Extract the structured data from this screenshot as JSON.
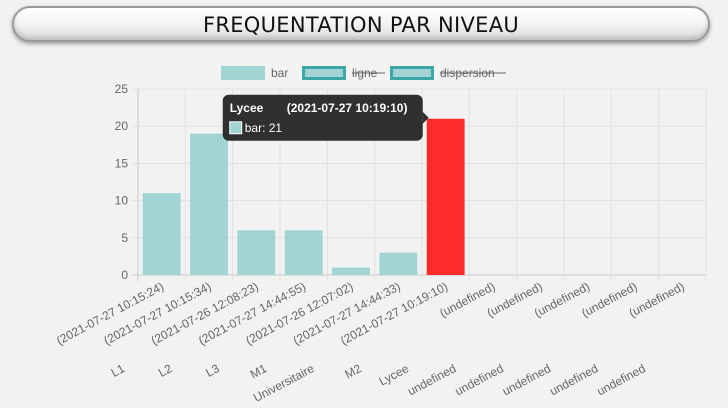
{
  "title": "FREQUENTATION PAR NIVEAU",
  "chart_data": {
    "type": "bar",
    "categories": [
      [
        "L1",
        "(2021-07-27 10:15:24)"
      ],
      [
        "L2",
        "(2021-07-27 10:15:34)"
      ],
      [
        "L3",
        "(2021-07-26 12:08:23)"
      ],
      [
        "M1",
        "(2021-07-27 14:44:55)"
      ],
      [
        "Universitaire",
        "(2021-07-26 12:07:02)"
      ],
      [
        "M2",
        "(2021-07-27 14:44:33)"
      ],
      [
        "Lycee",
        "(2021-07-27 10:19:10)"
      ],
      [
        "undefined",
        "(undefined)"
      ],
      [
        "undefined",
        "(undefined)"
      ],
      [
        "undefined",
        "(undefined)"
      ],
      [
        "undefined",
        "(undefined)"
      ],
      [
        "undefined",
        "(undefined)"
      ]
    ],
    "series": [
      {
        "name": "bar",
        "values": [
          11,
          19,
          6,
          6,
          1,
          3,
          21,
          null,
          null,
          null,
          null,
          null
        ],
        "hidden": false
      },
      {
        "name": "ligne",
        "hidden": true
      },
      {
        "name": "dispersion",
        "hidden": true
      }
    ],
    "ylim": [
      0,
      25
    ],
    "yticks": [
      0,
      5,
      10,
      15,
      20,
      25
    ],
    "grid": true,
    "legend_position": "top",
    "highlighted_index": 6,
    "colors": {
      "bar_fill": "#a2d4d4",
      "bar_highlight": "#ff2a2a",
      "legend_border_hidden": "#3aa6a6",
      "grid": "#e1e1e1",
      "axis": "#c8c8c8",
      "tooltip_bg": "#1f1f1f"
    },
    "tooltip": {
      "title_name": "Lycee",
      "title_time": "(2021-07-27 10:19:10)",
      "body": "bar: 21"
    }
  }
}
